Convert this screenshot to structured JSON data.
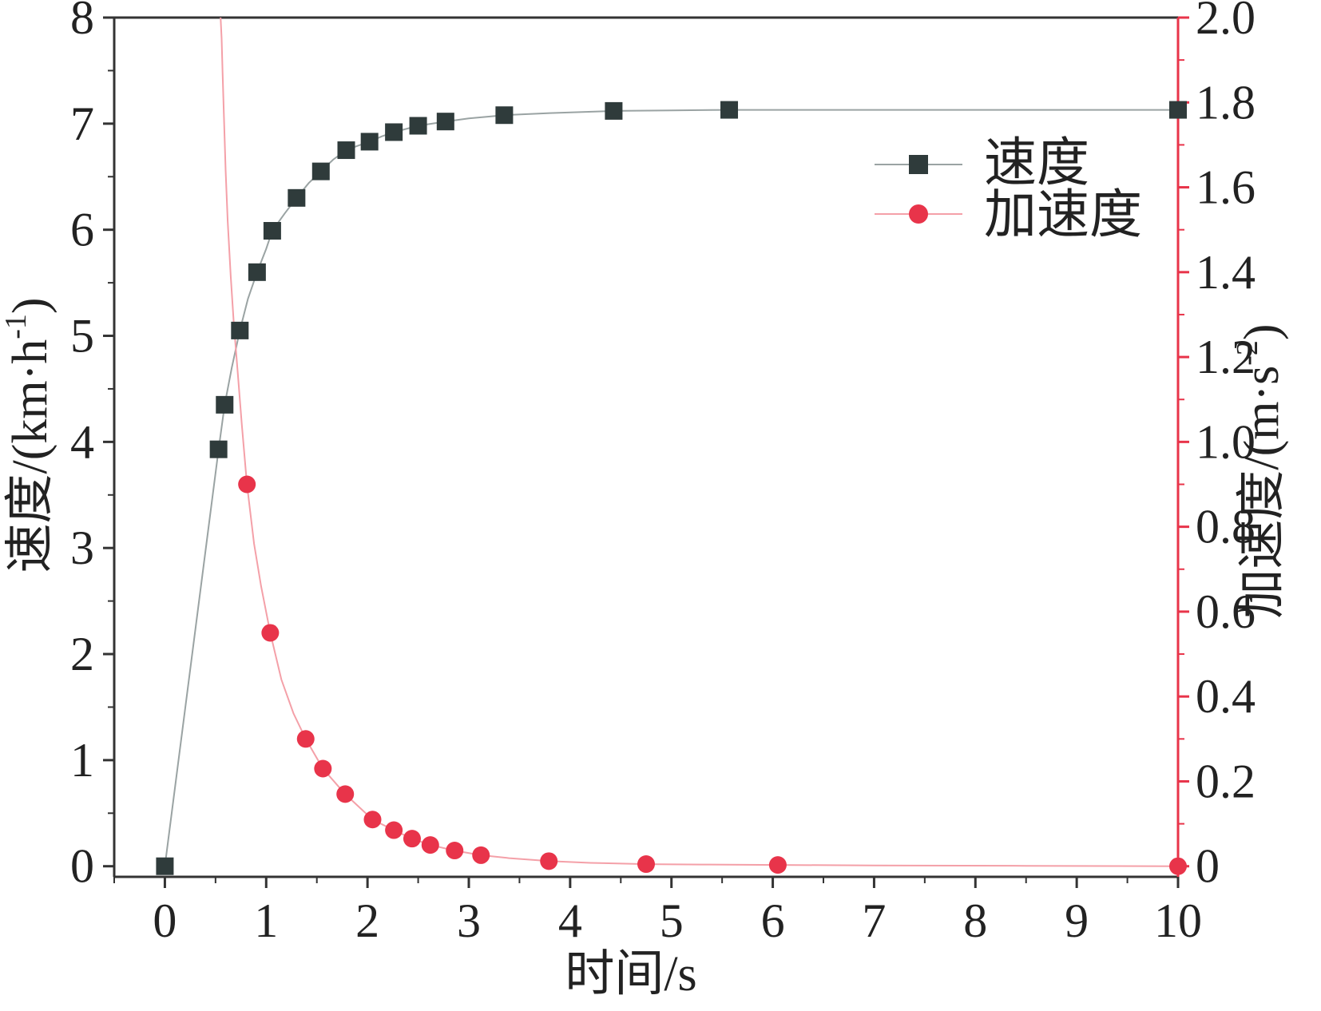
{
  "chart_data": {
    "type": "line",
    "xlabel": "时间/s",
    "ylabel_left": "速度/(km·h",
    "ylabel_left_sup": "-1",
    "ylabel_left_end": ")",
    "ylabel_right": "加速度/(m·s",
    "ylabel_right_sup": "-2",
    "ylabel_right_end": ")",
    "xlim": [
      -0.5,
      10
    ],
    "ylim_left": [
      -0.1,
      8
    ],
    "ylim_right": [
      -0.025,
      2.0
    ],
    "x_ticks": [
      "0",
      "1",
      "2",
      "3",
      "4",
      "5",
      "6",
      "7",
      "8",
      "9",
      "10"
    ],
    "y_left_ticks": [
      "0",
      "1",
      "2",
      "3",
      "4",
      "5",
      "6",
      "7",
      "8"
    ],
    "y_right_ticks": [
      "0",
      "0.2",
      "0.4",
      "0.6",
      "0.8",
      "1.0",
      "1.2",
      "1.4",
      "1.6",
      "1.8",
      "2.0"
    ],
    "legend_position": "top-right",
    "series": [
      {
        "name": "速度",
        "axis": "left",
        "marker": "square",
        "color": "#2f3b3b",
        "line_color": "#9aa3a3",
        "x": [
          0,
          0.53,
          0.59,
          0.74,
          0.91,
          1.06,
          1.3,
          1.54,
          1.79,
          2.02,
          2.26,
          2.5,
          2.77,
          3.35,
          4.43,
          5.57,
          10.0
        ],
        "y": [
          0,
          3.93,
          4.35,
          5.05,
          5.6,
          5.99,
          6.3,
          6.55,
          6.75,
          6.83,
          6.92,
          6.98,
          7.02,
          7.08,
          7.12,
          7.13,
          7.13
        ]
      },
      {
        "name": "加速度",
        "axis": "right",
        "marker": "circle",
        "color": "#e8344a",
        "line_color": "#f4a0a8",
        "x": [
          0.81,
          1.04,
          1.39,
          1.56,
          1.78,
          2.05,
          2.26,
          2.44,
          2.62,
          2.86,
          3.12,
          3.79,
          4.75,
          6.05,
          10.0
        ],
        "y": [
          0.9,
          0.55,
          0.3,
          0.23,
          0.17,
          0.11,
          0.085,
          0.065,
          0.05,
          0.037,
          0.026,
          0.012,
          0.005,
          0.003,
          0.0
        ]
      }
    ],
    "fit_curves": {
      "speed": {
        "x": [
          0,
          0.53,
          0.59,
          0.66,
          0.74,
          0.82,
          0.91,
          1.0,
          1.06,
          1.18,
          1.3,
          1.42,
          1.54,
          1.66,
          1.79,
          1.9,
          2.02,
          2.14,
          2.26,
          2.38,
          2.5,
          2.64,
          2.77,
          3.0,
          3.35,
          3.8,
          4.43,
          5.0,
          5.57,
          7.0,
          8.5,
          10.0
        ],
        "y": [
          0,
          3.93,
          4.35,
          4.7,
          5.05,
          5.35,
          5.6,
          5.82,
          5.99,
          6.15,
          6.3,
          6.44,
          6.55,
          6.66,
          6.75,
          6.79,
          6.83,
          6.88,
          6.92,
          6.95,
          6.98,
          7.0,
          7.02,
          7.05,
          7.08,
          7.1,
          7.12,
          7.125,
          7.13,
          7.13,
          7.13,
          7.13
        ]
      },
      "acceleration": {
        "x": [
          0.55,
          0.56,
          0.57,
          0.58,
          0.6,
          0.62,
          0.65,
          0.68,
          0.72,
          0.76,
          0.81,
          0.88,
          0.95,
          1.04,
          1.15,
          1.27,
          1.39,
          1.56,
          1.78,
          2.05,
          2.26,
          2.44,
          2.62,
          2.86,
          3.12,
          3.4,
          3.79,
          4.2,
          4.75,
          5.3,
          6.05,
          7.0,
          8.5,
          10.0
        ],
        "y": [
          2.0,
          1.95,
          1.87,
          1.79,
          1.64,
          1.52,
          1.39,
          1.28,
          1.16,
          1.04,
          0.9,
          0.76,
          0.66,
          0.55,
          0.44,
          0.36,
          0.3,
          0.23,
          0.17,
          0.11,
          0.085,
          0.065,
          0.05,
          0.037,
          0.026,
          0.019,
          0.012,
          0.008,
          0.005,
          0.004,
          0.003,
          0.002,
          0.001,
          0.0
        ]
      }
    }
  }
}
